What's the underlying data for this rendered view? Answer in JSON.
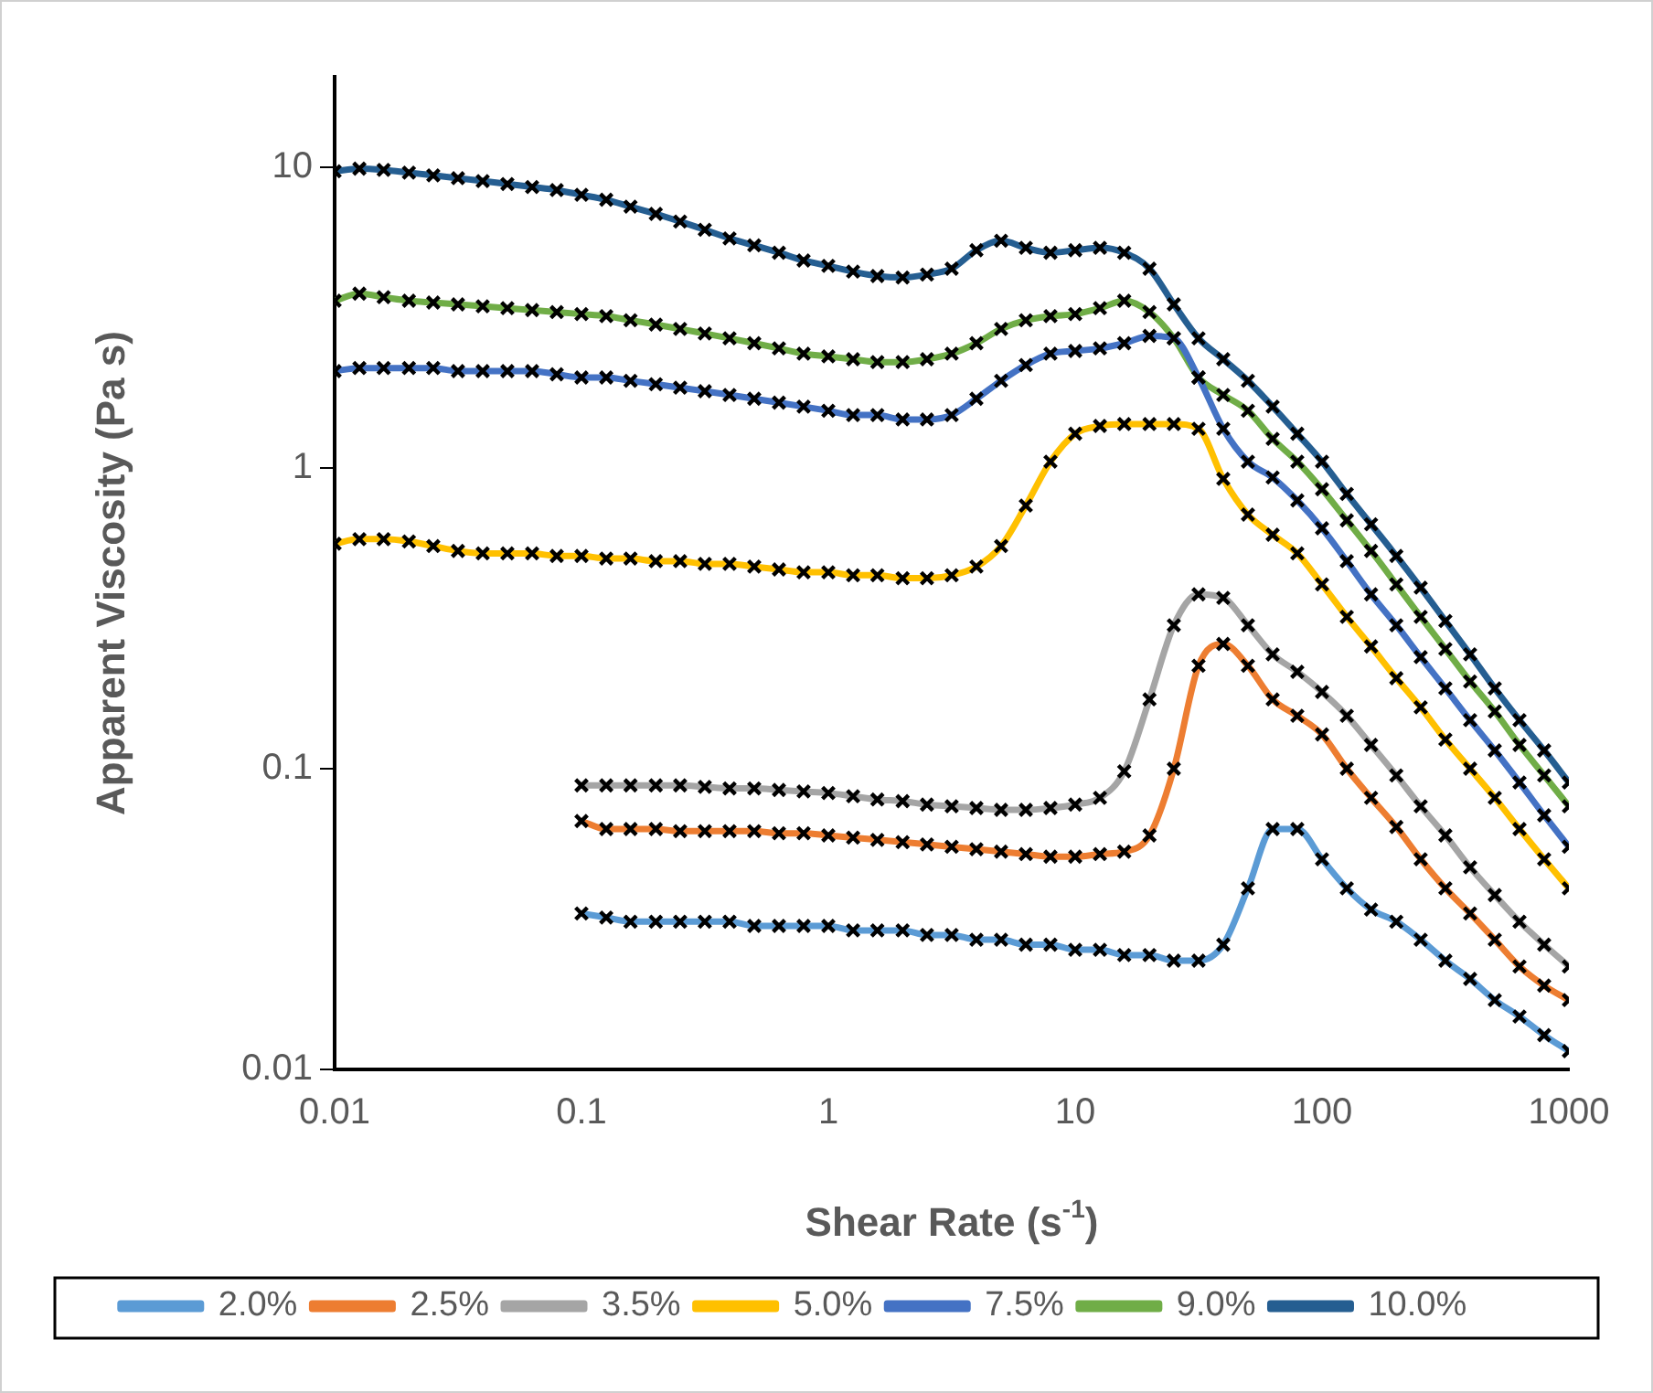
{
  "chart_data": {
    "type": "line",
    "xlabel": "Shear Rate (s$^{-1}$)",
    "ylabel": "Apparent Viscosity (Pa s)",
    "log": "xy",
    "marker": "cross",
    "line_style": "solid",
    "grid": false,
    "legend": "bottom",
    "xlim": [
      0.01,
      1000
    ],
    "xticks": [
      0.01,
      0.1,
      1,
      10,
      100,
      1000
    ],
    "ylim": [
      0.01,
      20
    ],
    "yticks": [
      0.01,
      0.1,
      1,
      10
    ],
    "x": [
      0.01,
      0.0126,
      0.0158,
      0.02,
      0.0251,
      0.0316,
      0.0398,
      0.0501,
      0.0631,
      0.0794,
      0.1,
      0.126,
      0.158,
      0.2,
      0.251,
      0.316,
      0.398,
      0.501,
      0.631,
      0.794,
      1,
      1.26,
      1.58,
      2,
      2.51,
      3.16,
      3.98,
      5.01,
      6.31,
      7.94,
      10,
      12.6,
      15.8,
      20,
      25.1,
      31.6,
      39.8,
      50.1,
      63.1,
      79.4,
      100,
      126,
      158,
      200,
      251,
      316,
      398,
      501,
      631,
      794,
      1000
    ],
    "series": [
      {
        "name": "2.0%",
        "color": "#5b9bd5",
        "values": [
          null,
          null,
          null,
          null,
          null,
          null,
          null,
          null,
          null,
          null,
          0.033,
          0.032,
          0.031,
          0.031,
          0.031,
          0.031,
          0.031,
          0.03,
          0.03,
          0.03,
          0.03,
          0.029,
          0.029,
          0.029,
          0.028,
          0.028,
          0.027,
          0.027,
          0.026,
          0.026,
          0.025,
          0.025,
          0.024,
          0.024,
          0.023,
          0.023,
          0.026,
          0.04,
          0.063,
          0.063,
          0.05,
          0.04,
          0.034,
          0.031,
          0.027,
          0.023,
          0.02,
          0.017,
          0.015,
          0.013,
          0.0115
        ]
      },
      {
        "name": "2.5%",
        "color": "#ed7d31",
        "values": [
          null,
          null,
          null,
          null,
          null,
          null,
          null,
          null,
          null,
          null,
          0.067,
          0.063,
          0.063,
          0.063,
          0.062,
          0.062,
          0.062,
          0.062,
          0.061,
          0.061,
          0.06,
          0.059,
          0.058,
          0.057,
          0.056,
          0.055,
          0.054,
          0.053,
          0.052,
          0.051,
          0.051,
          0.052,
          0.053,
          0.06,
          0.1,
          0.22,
          0.26,
          0.22,
          0.17,
          0.15,
          0.13,
          0.1,
          0.08,
          0.064,
          0.05,
          0.04,
          0.033,
          0.027,
          0.022,
          0.019,
          0.017
        ]
      },
      {
        "name": "3.5%",
        "color": "#a5a5a5",
        "values": [
          null,
          null,
          null,
          null,
          null,
          null,
          null,
          null,
          null,
          null,
          0.088,
          0.088,
          0.088,
          0.088,
          0.088,
          0.087,
          0.086,
          0.086,
          0.085,
          0.084,
          0.083,
          0.081,
          0.079,
          0.078,
          0.076,
          0.075,
          0.074,
          0.073,
          0.073,
          0.074,
          0.076,
          0.08,
          0.098,
          0.17,
          0.3,
          0.38,
          0.37,
          0.3,
          0.24,
          0.21,
          0.18,
          0.15,
          0.12,
          0.095,
          0.075,
          0.06,
          0.047,
          0.038,
          0.031,
          0.026,
          0.022
        ]
      },
      {
        "name": "5.0%",
        "color": "#ffc000",
        "values": [
          0.56,
          0.58,
          0.58,
          0.57,
          0.55,
          0.53,
          0.52,
          0.52,
          0.52,
          0.51,
          0.51,
          0.5,
          0.5,
          0.49,
          0.49,
          0.48,
          0.48,
          0.47,
          0.46,
          0.45,
          0.45,
          0.44,
          0.44,
          0.43,
          0.43,
          0.44,
          0.47,
          0.55,
          0.75,
          1.05,
          1.3,
          1.38,
          1.4,
          1.4,
          1.4,
          1.35,
          0.92,
          0.7,
          0.6,
          0.52,
          0.41,
          0.32,
          0.255,
          0.2,
          0.16,
          0.125,
          0.1,
          0.08,
          0.063,
          0.05,
          0.04
        ]
      },
      {
        "name": "7.5%",
        "color": "#4472c4",
        "values": [
          2.1,
          2.15,
          2.15,
          2.15,
          2.15,
          2.1,
          2.1,
          2.1,
          2.1,
          2.05,
          2.0,
          2.0,
          1.95,
          1.9,
          1.85,
          1.8,
          1.75,
          1.7,
          1.65,
          1.6,
          1.55,
          1.5,
          1.5,
          1.45,
          1.45,
          1.5,
          1.7,
          1.95,
          2.2,
          2.4,
          2.45,
          2.5,
          2.6,
          2.75,
          2.7,
          2.0,
          1.35,
          1.05,
          0.93,
          0.78,
          0.63,
          0.49,
          0.38,
          0.3,
          0.235,
          0.185,
          0.145,
          0.115,
          0.09,
          0.07,
          0.055
        ]
      },
      {
        "name": "9.0%",
        "color": "#70ad47",
        "values": [
          3.6,
          3.8,
          3.7,
          3.6,
          3.55,
          3.5,
          3.45,
          3.4,
          3.35,
          3.3,
          3.25,
          3.2,
          3.1,
          3.0,
          2.9,
          2.8,
          2.7,
          2.6,
          2.5,
          2.4,
          2.35,
          2.3,
          2.25,
          2.25,
          2.3,
          2.4,
          2.6,
          2.9,
          3.1,
          3.2,
          3.25,
          3.4,
          3.6,
          3.3,
          2.7,
          2.0,
          1.75,
          1.55,
          1.25,
          1.05,
          0.85,
          0.67,
          0.53,
          0.41,
          0.32,
          0.25,
          0.195,
          0.155,
          0.12,
          0.095,
          0.075
        ]
      },
      {
        "name": "10.0%",
        "color": "#255e91",
        "values": [
          9.7,
          9.9,
          9.8,
          9.6,
          9.4,
          9.2,
          9.0,
          8.8,
          8.6,
          8.4,
          8.1,
          7.8,
          7.4,
          7.0,
          6.6,
          6.2,
          5.8,
          5.5,
          5.2,
          4.9,
          4.7,
          4.5,
          4.35,
          4.3,
          4.4,
          4.6,
          5.3,
          5.7,
          5.4,
          5.2,
          5.3,
          5.4,
          5.2,
          4.6,
          3.5,
          2.7,
          2.3,
          1.95,
          1.6,
          1.3,
          1.05,
          0.82,
          0.65,
          0.51,
          0.4,
          0.31,
          0.24,
          0.185,
          0.145,
          0.115,
          0.09
        ]
      }
    ]
  }
}
